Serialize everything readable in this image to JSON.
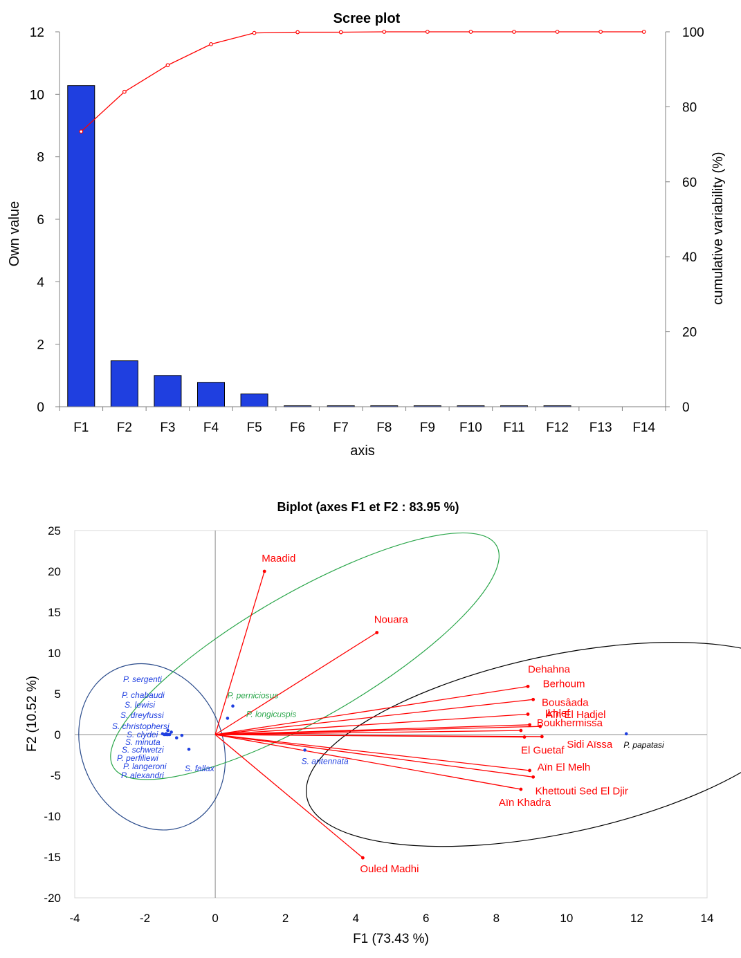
{
  "colors": {
    "bar": "#1f3fe0",
    "cumulative": "#ff0000",
    "variable": "#ff0000",
    "species": "#1f3fe0",
    "group_blue": "#2b4c8c",
    "group_green": "#2aa64a",
    "group_black": "#000000",
    "axis": "#7f7f7f",
    "grid": "#d9d9d9"
  },
  "chart_data": [
    {
      "type": "bar",
      "title": "Scree plot",
      "xlabel": "axis",
      "ylabel": "Own value",
      "y2label": "cumulative variability (%)",
      "categories": [
        "F1",
        "F2",
        "F3",
        "F4",
        "F5",
        "F6",
        "F7",
        "F8",
        "F9",
        "F10",
        "F11",
        "F12",
        "F13",
        "F14"
      ],
      "ylim": [
        0,
        12
      ],
      "yticks": [
        "0",
        "2",
        "4",
        "6",
        "8",
        "10",
        "12"
      ],
      "y2lim": [
        0,
        100
      ],
      "y2ticks": [
        "0",
        "20",
        "40",
        "60",
        "80",
        "100"
      ],
      "series": [
        {
          "name": "Own value",
          "axis": "left",
          "values": [
            10.28,
            1.47,
            1.0,
            0.78,
            0.41,
            0.03,
            0.03,
            0.03,
            0.03,
            0.03,
            0.03,
            0.03,
            0.0,
            0.0
          ]
        },
        {
          "name": "cumulative variability (%)",
          "axis": "right",
          "type": "line",
          "values": [
            73.4,
            84.0,
            91.1,
            96.7,
            99.7,
            99.9,
            99.9,
            100,
            100,
            100,
            100,
            100,
            100,
            100
          ]
        }
      ]
    },
    {
      "type": "scatter",
      "title": "Biplot (axes F1 et F2 : 83.95 %)",
      "xlabel": "F1 (73.43 %)",
      "ylabel": "F2 (10.52 %)",
      "xlim": [
        -4,
        14
      ],
      "ylim": [
        -20,
        25
      ],
      "xticks": [
        "-4",
        "-2",
        "0",
        "2",
        "4",
        "6",
        "8",
        "10",
        "12",
        "14"
      ],
      "yticks": [
        "-20",
        "-15",
        "-10",
        "-5",
        "0",
        "5",
        "10",
        "15",
        "20",
        "25"
      ],
      "variables": [
        {
          "name": "Maadid",
          "x": 1.4,
          "y": 20.0
        },
        {
          "name": "Nouara",
          "x": 4.6,
          "y": 12.5
        },
        {
          "name": "Dehahna",
          "x": 8.9,
          "y": 5.9
        },
        {
          "name": "Berhoum",
          "x": 9.05,
          "y": 4.3
        },
        {
          "name": "Bousâada",
          "x": 8.9,
          "y": 2.5
        },
        {
          "name": "Ikhlef",
          "x": 8.95,
          "y": 1.2
        },
        {
          "name": "Aïn El Hadjel",
          "x": 9.25,
          "y": 1.0
        },
        {
          "name": "Boukhermissa",
          "x": 8.7,
          "y": 0.5
        },
        {
          "name": "Sidi Aïssa",
          "x": 9.3,
          "y": -0.25
        },
        {
          "name": "El Guetaf",
          "x": 8.8,
          "y": -0.3
        },
        {
          "name": "Aïn El Melh",
          "x": 8.95,
          "y": -4.4
        },
        {
          "name": "Khettouti Sed El Djir",
          "x": 9.05,
          "y": -5.2
        },
        {
          "name": "Aïn Khadra",
          "x": 8.7,
          "y": -6.7
        },
        {
          "name": "Ouled Madhi",
          "x": 4.2,
          "y": -15.1
        }
      ],
      "species": [
        {
          "name": "P. papatasi",
          "x": 11.7,
          "y": 0.1,
          "group": "black"
        },
        {
          "name": "P. perniciosus",
          "x": 0.5,
          "y": 3.5,
          "group": "green"
        },
        {
          "name": "P. longicuspis",
          "x": 0.35,
          "y": 2.0,
          "group": "green"
        },
        {
          "name": "S. antennata",
          "x": 2.55,
          "y": -1.9,
          "group": "blue_label"
        },
        {
          "name": "S. fallax",
          "x": -0.75,
          "y": -1.8,
          "group": "blue"
        },
        {
          "name": "P. sergenti",
          "x": -1.35,
          "y": 0.5,
          "group": "blue"
        },
        {
          "name": "P. chabaudi",
          "x": -1.25,
          "y": 0.3,
          "group": "blue"
        },
        {
          "name": "S. lewisi",
          "x": -1.4,
          "y": 0.1,
          "group": "blue"
        },
        {
          "name": "S. dreyfussi",
          "x": -1.3,
          "y": 0.0,
          "group": "blue"
        },
        {
          "name": "S. christophersi",
          "x": -1.45,
          "y": 0.0,
          "group": "blue"
        },
        {
          "name": "S. clydei",
          "x": -1.1,
          "y": -0.4,
          "group": "blue"
        },
        {
          "name": "S. minuta",
          "x": -0.95,
          "y": -0.1,
          "group": "blue"
        },
        {
          "name": "S. schwetzi",
          "x": -1.5,
          "y": 0.1,
          "group": "blue"
        },
        {
          "name": "P. perfiliewi",
          "x": -1.35,
          "y": 0.0,
          "group": "blue"
        },
        {
          "name": "P. langeroni",
          "x": -1.4,
          "y": 0.0,
          "group": "blue"
        },
        {
          "name": "P. alexandri",
          "x": -1.35,
          "y": 0.0,
          "group": "blue"
        }
      ],
      "ellipses": [
        {
          "name": "blue-cluster",
          "cx": -1.8,
          "cy": -1.5,
          "rx": 2.0,
          "ry": 10.5,
          "angle_deg": -25,
          "group": "blue"
        },
        {
          "name": "green-cluster",
          "cx": 2.55,
          "cy": 9.6,
          "rx": 6.3,
          "ry": 7.7,
          "angle_deg": -30,
          "group": "green"
        },
        {
          "name": "black-cluster",
          "cx": 9.75,
          "cy": -1.2,
          "rx": 7.3,
          "ry": 10.9,
          "angle_deg": -12,
          "group": "black"
        }
      ]
    }
  ]
}
